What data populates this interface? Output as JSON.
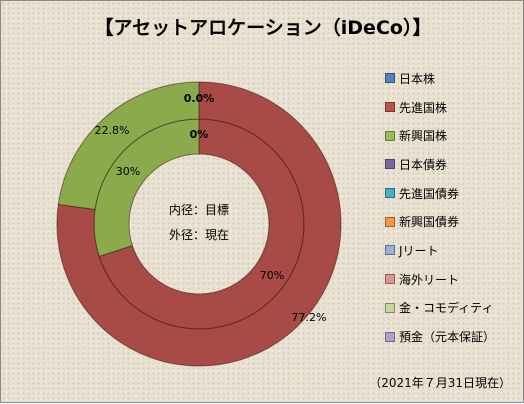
{
  "title": "【アセットアロケーション（iDeCo）】",
  "as_of": "（2021年７月31日現在）",
  "center_labels": [
    "内径：目標",
    "外径：現在"
  ],
  "legend": [
    {
      "label": "日本株",
      "color": "#4f81bd"
    },
    {
      "label": "先進国株",
      "color": "#c0504d"
    },
    {
      "label": "新興国株",
      "color": "#9bbb59"
    },
    {
      "label": "日本債券",
      "color": "#8064a2"
    },
    {
      "label": "先進国債券",
      "color": "#4bacc6"
    },
    {
      "label": "新興国債券",
      "color": "#f79646"
    },
    {
      "label": "Jリート",
      "color": "#95b3d7"
    },
    {
      "label": "海外リート",
      "color": "#d99694"
    },
    {
      "label": "金・コモディティ",
      "color": "#c3d69b"
    },
    {
      "label": "預金（元本保証）",
      "color": "#b2a1c7"
    }
  ],
  "chart_data": {
    "type": "doughnut",
    "title": "【アセットアロケーション（iDeCo）】",
    "categories": [
      "日本株",
      "先進国株",
      "新興国株",
      "日本債券",
      "先進国債券",
      "新興国債券",
      "Jリート",
      "海外リート",
      "金・コモディティ",
      "預金（元本保証）"
    ],
    "series": [
      {
        "name": "目標",
        "ring": "inner",
        "values": [
          0,
          70,
          30,
          0,
          0,
          0,
          0,
          0,
          0,
          0
        ],
        "labels": {
          "日本株": "0%",
          "先進国株": "70%",
          "新興国株": "30%"
        }
      },
      {
        "name": "現在",
        "ring": "outer",
        "values": [
          0.0,
          77.2,
          22.8,
          0,
          0,
          0,
          0,
          0,
          0,
          0
        ],
        "labels": {
          "日本株": "0.0%",
          "先進国株": "77.2%",
          "新興国株": "22.8%"
        }
      }
    ],
    "colors": {
      "先進国株": "#a84a46",
      "新興国株": "#8aaa4c"
    },
    "legend_position": "right"
  }
}
